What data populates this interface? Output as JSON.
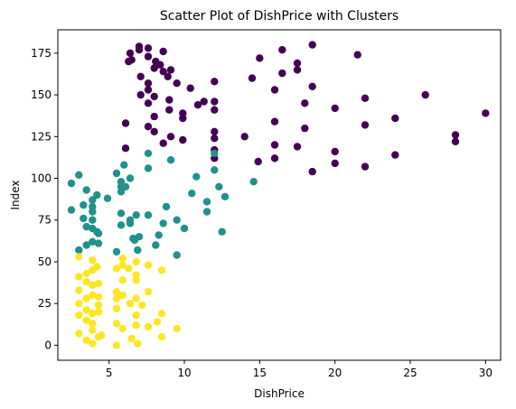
{
  "chart_data": {
    "type": "scatter",
    "title": "Scatter Plot of DishPrice with Clusters",
    "xlabel": "DishPrice",
    "ylabel": "Index",
    "xlim": [
      1.6,
      31.0
    ],
    "ylim": [
      -9,
      189
    ],
    "xticks": [
      5,
      10,
      15,
      20,
      25,
      30
    ],
    "yticks": [
      0,
      25,
      50,
      75,
      100,
      125,
      150,
      175
    ],
    "grid": false,
    "colors": {
      "cluster_0": "#440154",
      "cluster_1": "#21918c",
      "cluster_2": "#fde725"
    },
    "series": [
      {
        "cluster": 0,
        "color": "#440154",
        "points": [
          [
            6.3,
            170
          ],
          [
            6.4,
            175
          ],
          [
            6.5,
            171
          ],
          [
            7,
            179
          ],
          [
            7,
            177
          ],
          [
            7.6,
            178
          ],
          [
            7.6,
            173
          ],
          [
            8.1,
            170
          ],
          [
            8.6,
            176
          ],
          [
            8.4,
            168
          ],
          [
            8,
            166
          ],
          [
            8.6,
            164
          ],
          [
            8.9,
            161
          ],
          [
            9.1,
            165
          ],
          [
            9.5,
            157
          ],
          [
            7.6,
            157
          ],
          [
            7.1,
            161
          ],
          [
            7.6,
            153
          ],
          [
            7.1,
            150
          ],
          [
            7.6,
            145
          ],
          [
            8,
            149
          ],
          [
            9,
            147
          ],
          [
            8,
            137
          ],
          [
            9,
            141
          ],
          [
            9.9,
            136
          ],
          [
            10.4,
            154
          ],
          [
            10.9,
            144
          ],
          [
            11.3,
            146
          ],
          [
            9.9,
            139
          ],
          [
            9.9,
            123
          ],
          [
            7.6,
            131
          ],
          [
            8.6,
            121
          ],
          [
            8,
            128
          ],
          [
            9.1,
            125
          ],
          [
            6.1,
            133
          ],
          [
            6.1,
            118
          ],
          [
            12,
            158
          ],
          [
            12,
            146
          ],
          [
            12,
            141
          ],
          [
            12,
            128
          ],
          [
            12,
            124
          ],
          [
            12,
            117
          ],
          [
            12,
            112
          ],
          [
            14,
            125
          ],
          [
            14.5,
            160
          ],
          [
            15,
            172
          ],
          [
            16.5,
            177
          ],
          [
            16,
            153
          ],
          [
            16,
            134
          ],
          [
            16,
            120
          ],
          [
            16,
            112
          ],
          [
            14.9,
            110
          ],
          [
            16.5,
            163
          ],
          [
            17.5,
            165
          ],
          [
            17.5,
            169
          ],
          [
            18.5,
            180
          ],
          [
            18.5,
            155
          ],
          [
            17.5,
            119
          ],
          [
            18,
            130
          ],
          [
            18.5,
            104
          ],
          [
            18,
            145
          ],
          [
            20,
            142
          ],
          [
            20,
            116
          ],
          [
            20,
            109
          ],
          [
            21.5,
            174
          ],
          [
            22,
            148
          ],
          [
            22,
            132
          ],
          [
            22,
            107
          ],
          [
            24,
            136
          ],
          [
            24,
            114
          ],
          [
            26,
            150
          ],
          [
            28,
            126
          ],
          [
            28,
            122
          ],
          [
            30,
            139
          ]
        ]
      },
      {
        "cluster": 1,
        "color": "#21918c",
        "points": [
          [
            2.5,
            97
          ],
          [
            2.5,
            81
          ],
          [
            3,
            102
          ],
          [
            3,
            57
          ],
          [
            3.3,
            84
          ],
          [
            3.3,
            76
          ],
          [
            3.5,
            93
          ],
          [
            3.5,
            71
          ],
          [
            3.5,
            60
          ],
          [
            3.9,
            87
          ],
          [
            3.9,
            80
          ],
          [
            3.9,
            62
          ],
          [
            3.9,
            75
          ],
          [
            3.9,
            70
          ],
          [
            3.9,
            83
          ],
          [
            4.2,
            90
          ],
          [
            4.2,
            68
          ],
          [
            4.3,
            61
          ],
          [
            4.3,
            67
          ],
          [
            4.9,
            88
          ],
          [
            5.5,
            103
          ],
          [
            5.5,
            56
          ],
          [
            5.8,
            98
          ],
          [
            5.8,
            95
          ],
          [
            5.8,
            92
          ],
          [
            5.8,
            79
          ],
          [
            5.8,
            72
          ],
          [
            6,
            108
          ],
          [
            6.1,
            95
          ],
          [
            6.4,
            100
          ],
          [
            6.4,
            75
          ],
          [
            6.4,
            73
          ],
          [
            6.6,
            64
          ],
          [
            6.8,
            78
          ],
          [
            6.7,
            63
          ],
          [
            6.9,
            57
          ],
          [
            7,
            65
          ],
          [
            7.6,
            115
          ],
          [
            7.6,
            106
          ],
          [
            7.6,
            78
          ],
          [
            8.1,
            60
          ],
          [
            8.3,
            66
          ],
          [
            8.6,
            73
          ],
          [
            8.8,
            83
          ],
          [
            9.1,
            111
          ],
          [
            9.5,
            75
          ],
          [
            9.5,
            54
          ],
          [
            10,
            70
          ],
          [
            10.5,
            91
          ],
          [
            10.8,
            101
          ],
          [
            11.5,
            86
          ],
          [
            11.5,
            80
          ],
          [
            12,
            115
          ],
          [
            12,
            105
          ],
          [
            12.3,
            95
          ],
          [
            12.5,
            68
          ],
          [
            12.7,
            89
          ],
          [
            14.6,
            98
          ]
        ]
      },
      {
        "cluster": 2,
        "color": "#fde725",
        "points": [
          [
            3,
            53
          ],
          [
            3,
            41
          ],
          [
            3,
            33
          ],
          [
            3,
            25
          ],
          [
            3,
            18
          ],
          [
            3,
            7
          ],
          [
            3.5,
            43
          ],
          [
            3.5,
            38
          ],
          [
            3.5,
            28
          ],
          [
            3.5,
            21
          ],
          [
            3.5,
            15
          ],
          [
            3.5,
            3
          ],
          [
            3.9,
            51
          ],
          [
            3.9,
            45
          ],
          [
            3.9,
            36
          ],
          [
            3.9,
            30
          ],
          [
            3.9,
            19
          ],
          [
            3.9,
            13
          ],
          [
            3.9,
            9
          ],
          [
            3.9,
            1
          ],
          [
            4.2,
            47
          ],
          [
            4.3,
            37
          ],
          [
            4.3,
            29
          ],
          [
            4.3,
            24
          ],
          [
            4.3,
            20
          ],
          [
            4.3,
            5
          ],
          [
            4.5,
            6
          ],
          [
            5.5,
            46
          ],
          [
            5.5,
            32
          ],
          [
            5.5,
            28
          ],
          [
            5.5,
            22
          ],
          [
            5.5,
            13
          ],
          [
            5.5,
            0
          ],
          [
            5.9,
            52
          ],
          [
            5.9,
            48
          ],
          [
            5.9,
            39
          ],
          [
            5.9,
            30
          ],
          [
            5.9,
            10
          ],
          [
            6.3,
            46
          ],
          [
            6.4,
            25
          ],
          [
            6.5,
            4
          ],
          [
            6.8,
            50
          ],
          [
            6.8,
            42
          ],
          [
            6.8,
            39
          ],
          [
            6.8,
            28
          ],
          [
            6.8,
            18
          ],
          [
            6.8,
            12
          ],
          [
            6.9,
            1
          ],
          [
            7.2,
            24
          ],
          [
            7.6,
            48
          ],
          [
            7.6,
            32
          ],
          [
            7.6,
            11
          ],
          [
            8.2,
            14
          ],
          [
            8.5,
            45
          ],
          [
            8.5,
            19
          ],
          [
            8.5,
            5
          ],
          [
            9.5,
            10
          ]
        ]
      }
    ]
  }
}
